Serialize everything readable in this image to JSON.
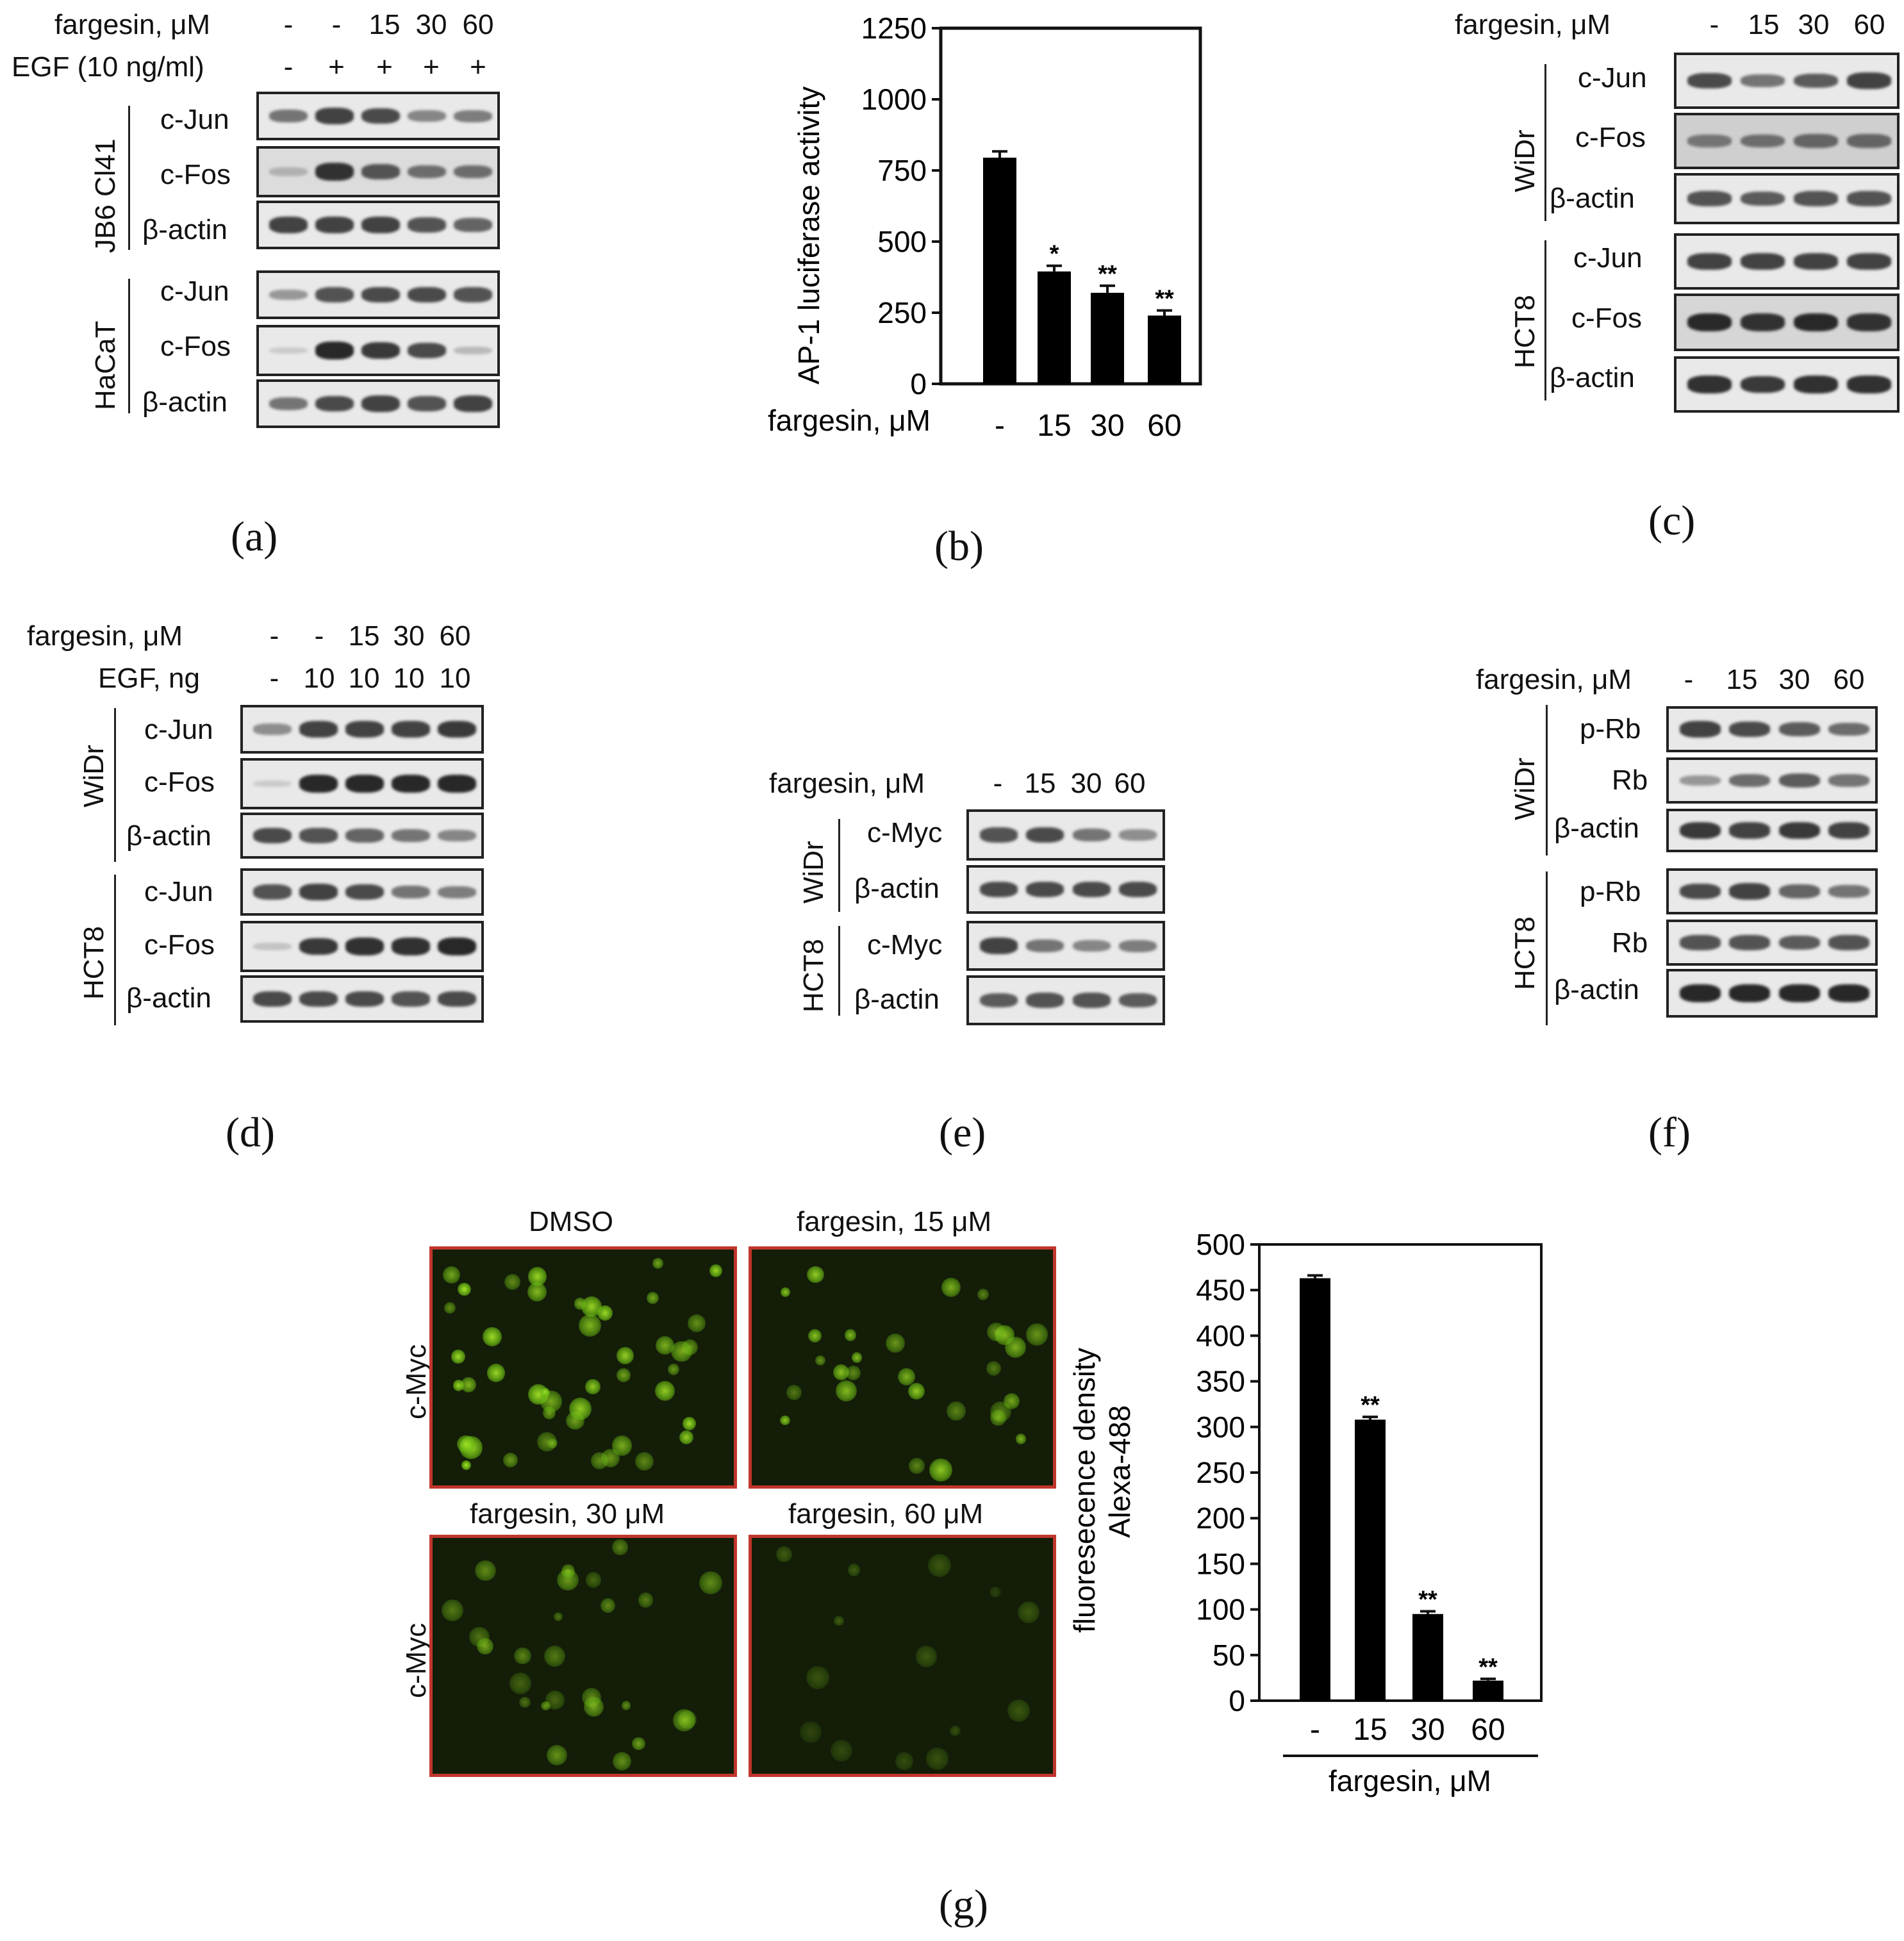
{
  "panel_letters": {
    "a": "(a)",
    "b": "(b)",
    "c": "(c)",
    "d": "(d)",
    "e": "(e)",
    "f": "(f)",
    "g": "(g)"
  },
  "panel_a": {
    "header_fargesin": "fargesin, μM",
    "header_egf": "EGF (10 ng/ml)",
    "lanes_fargesin": [
      "-",
      "-",
      "15",
      "30",
      "60"
    ],
    "lanes_egf": [
      "-",
      "+",
      "+",
      "+",
      "+"
    ],
    "group1_name": "JB6 Cl41",
    "group2_name": "HaCaT",
    "g1_rows": [
      "c-Jun",
      "c-Fos",
      "β-actin"
    ],
    "g2_rows": [
      "c-Jun",
      "c-Fos",
      "β-actin"
    ]
  },
  "panel_c": {
    "header_fargesin": "fargesin, μM",
    "lanes": [
      "-",
      "15",
      "30",
      "60"
    ],
    "group1_name": "WiDr",
    "group2_name": "HCT8",
    "g1_rows": [
      "c-Jun",
      "c-Fos",
      "β-actin"
    ],
    "g2_rows": [
      "c-Jun",
      "c-Fos",
      "β-actin"
    ]
  },
  "panel_d": {
    "header_fargesin": "fargesin, μM",
    "header_egf": "EGF, ng",
    "lanes_fargesin": [
      "-",
      "-",
      "15",
      "30",
      "60"
    ],
    "lanes_egf": [
      "-",
      "10",
      "10",
      "10",
      "10"
    ],
    "group1_name": "WiDr",
    "group2_name": "HCT8",
    "g1_rows": [
      "c-Jun",
      "c-Fos",
      "β-actin"
    ],
    "g2_rows": [
      "c-Jun",
      "c-Fos",
      "β-actin"
    ]
  },
  "panel_e": {
    "header_fargesin": "fargesin, μM",
    "lanes": [
      "-",
      "15",
      "30",
      "60"
    ],
    "group1_name": "WiDr",
    "group2_name": "HCT8",
    "g1_rows": [
      "c-Myc",
      "β-actin"
    ],
    "g2_rows": [
      "c-Myc",
      "β-actin"
    ]
  },
  "panel_f": {
    "header_fargesin": "fargesin, μM",
    "lanes": [
      "-",
      "15",
      "30",
      "60"
    ],
    "group1_name": "WiDr",
    "group2_name": "HCT8",
    "g1_rows": [
      "p-Rb",
      "Rb",
      "β-actin"
    ],
    "g2_rows": [
      "p-Rb",
      "Rb",
      "β-actin"
    ]
  },
  "panel_g": {
    "row_label_1": "c-Myc",
    "row_label_2": "c-Myc",
    "titles": [
      "DMSO",
      "fargesin, 15 μM",
      "fargesin, 30 μM",
      "fargesin, 60 μM"
    ]
  },
  "colors": {
    "bar": "#000000",
    "fluor_green": "#7fd21a",
    "panel_border": "#c0362c"
  },
  "chart_data": [
    {
      "type": "bar",
      "panel": "b",
      "categories": [
        "-",
        "15",
        "30",
        "60"
      ],
      "values": [
        795,
        395,
        320,
        240
      ],
      "errors": [
        22,
        20,
        25,
        18
      ],
      "significance": [
        "",
        "*",
        "**",
        "**"
      ],
      "ylabel": "AP-1 luciferase activity",
      "xlabel": "fargesin, μM",
      "ylim": [
        0,
        1250
      ],
      "yticks": [
        0,
        250,
        500,
        750,
        1000,
        1250
      ]
    },
    {
      "type": "bar",
      "panel": "g",
      "categories": [
        "-",
        "15",
        "30",
        "60"
      ],
      "values": [
        463,
        308,
        95,
        22
      ],
      "errors": [
        3,
        3,
        3,
        2
      ],
      "significance": [
        "",
        "**",
        "**",
        "**"
      ],
      "ylabel": "fluoresecence density",
      "ylabel2": "Alexa-488",
      "xlabel": "fargesin, μM",
      "ylim": [
        0,
        500
      ],
      "yticks": [
        0,
        50,
        100,
        150,
        200,
        250,
        300,
        350,
        400,
        450,
        500
      ]
    }
  ]
}
